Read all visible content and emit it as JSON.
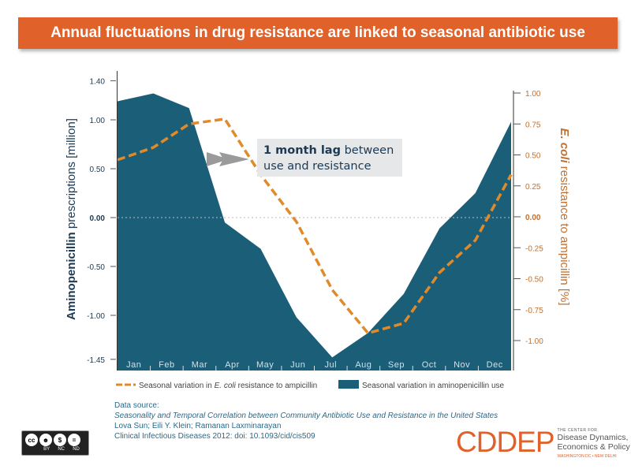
{
  "title": "Annual fluctuations in drug resistance are linked to seasonal antibiotic use",
  "chart_data": {
    "type": "area+line",
    "categories": [
      "Jan",
      "Feb",
      "Mar",
      "Apr",
      "May",
      "Jun",
      "Jul",
      "Aug",
      "Sep",
      "Oct",
      "Nov",
      "Dec"
    ],
    "series": [
      {
        "name": "Seasonal variation in aminopenicillin use",
        "type": "area",
        "axis": "left",
        "color": "#1b5e78",
        "values": [
          1.19,
          1.27,
          1.12,
          -0.05,
          -0.32,
          -1.02,
          -1.43,
          -1.18,
          -0.78,
          -0.11,
          0.25,
          0.98
        ]
      },
      {
        "name": "Seasonal variation in E. coli resistance to ampicillin",
        "type": "line",
        "style": "dashed",
        "axis": "right",
        "color": "#e08a2a",
        "values": [
          0.46,
          0.56,
          0.75,
          0.79,
          0.34,
          -0.04,
          -0.59,
          -0.94,
          -0.86,
          -0.45,
          -0.19,
          0.34
        ]
      }
    ],
    "ylabel_left": {
      "bold": "Aminopenicillin",
      "rest": " prescriptions [million]"
    },
    "ylabel_right": {
      "bold": "E. coli",
      "rest": " resistance to ampicillin [%]"
    },
    "ylim_left": [
      -1.45,
      1.4
    ],
    "yticks_left": [
      "1.40",
      "1.00",
      "0.50",
      "0.00",
      "-0.50",
      "-1.00",
      "-1.45"
    ],
    "yticks_left_values": [
      1.4,
      1.0,
      0.5,
      0.0,
      -0.5,
      -1.0,
      -1.45
    ],
    "ylim_right": [
      -1.0,
      1.0
    ],
    "yticks_right": [
      "1.00",
      "0.75",
      "0.50",
      "0.25",
      "0.00",
      "-0.25",
      "-0.50",
      "-0.75",
      "-1.00"
    ],
    "yticks_right_values": [
      1.0,
      0.75,
      0.5,
      0.25,
      0.0,
      -0.25,
      -0.5,
      -0.75,
      -1.0
    ],
    "annotation": {
      "bold": "1 month lag",
      "rest1": " between",
      "rest2": "use and resistance"
    },
    "legend": {
      "placement": "bottom",
      "line_pre": "Seasonal variation in ",
      "line_italic": "E. coli",
      "line_post": " resistance to ampicillin",
      "area": "Seasonal variation in aminopenicillin use"
    },
    "zero_gridline": true
  },
  "source": {
    "heading": "Data source:",
    "paper": "Seasonality and Temporal Correlation between Community Antibiotic Use and Resistance in the United States",
    "authors": "Lova Sun; Eili Y. Klein; Ramanan Laxminarayan",
    "citation": "Clinical Infectious Diseases 2012: doi: 10.1093/cid/cis509"
  },
  "license": {
    "labels": [
      "BY",
      "NC",
      "ND"
    ],
    "badge": "cc"
  },
  "logo": {
    "name": "CDDEP",
    "line1": "THE CENTER FOR",
    "line2": "Disease Dynamics,",
    "line3": "Economics & Policy",
    "line4": "WASHINGTON DC • NEW DELHI"
  },
  "colors": {
    "accent": "#e0612a",
    "area": "#1b5e78",
    "line": "#e08a2a"
  }
}
